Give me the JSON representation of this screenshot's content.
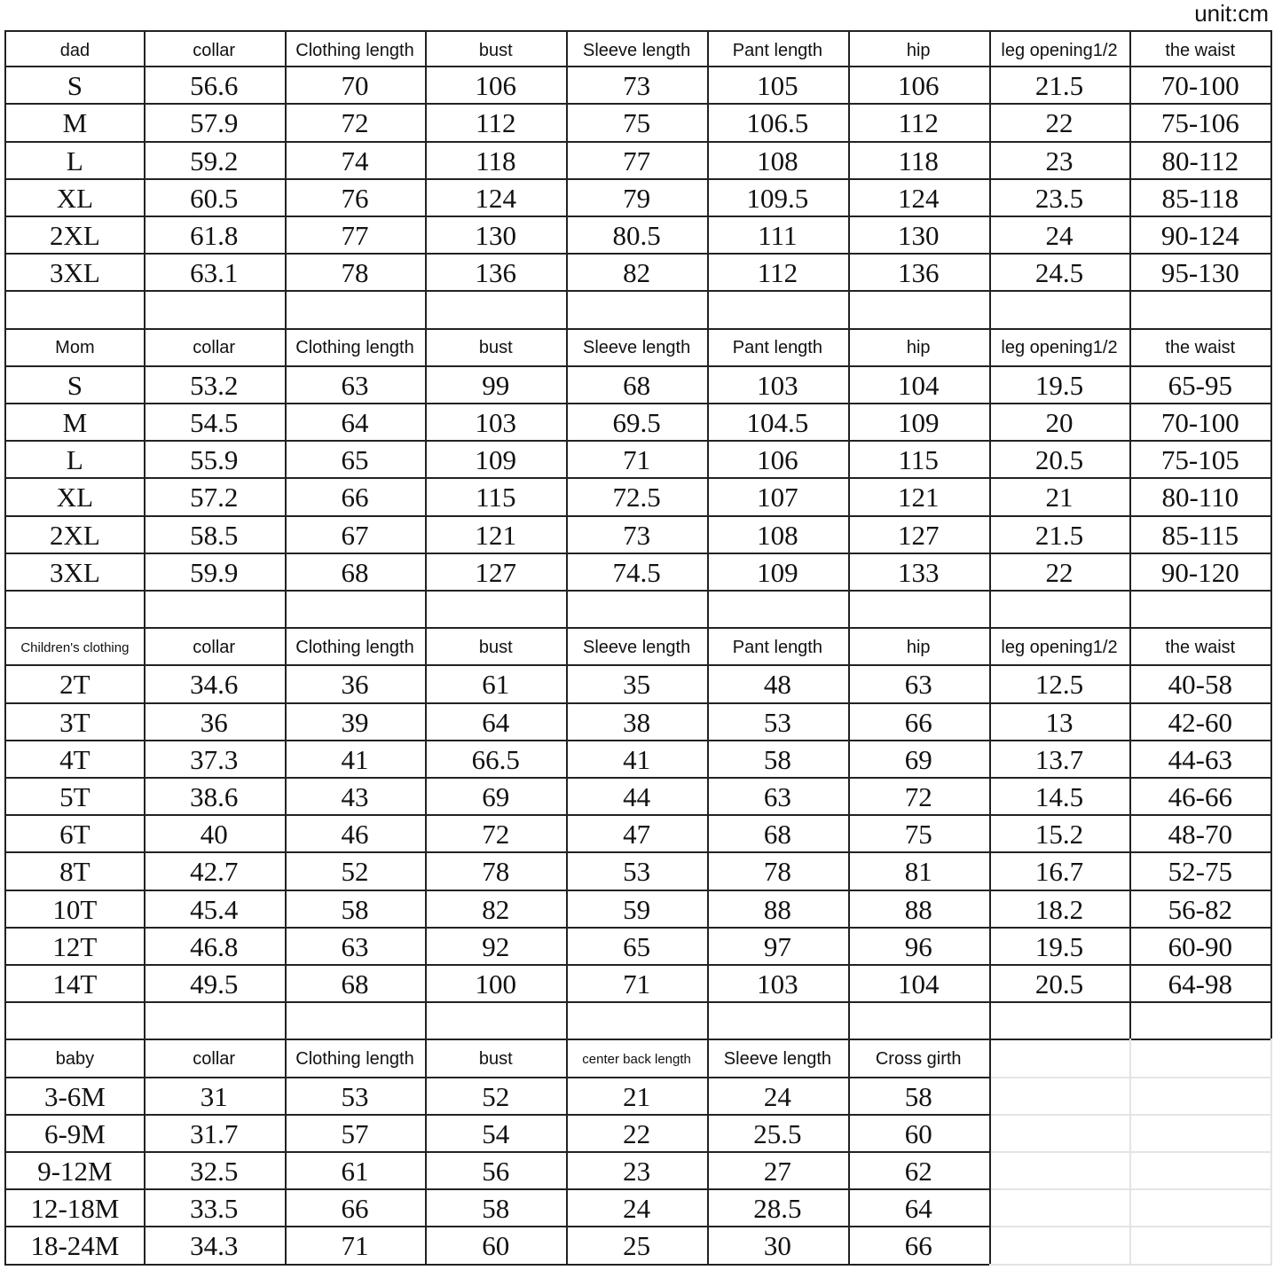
{
  "unit": "unit:cm",
  "sections": [
    {
      "headers": [
        "dad",
        "collar",
        "Clothing length",
        "bust",
        "Sleeve length",
        "Pant length",
        "hip",
        "leg opening1/2",
        "the waist"
      ],
      "rows": [
        [
          "S",
          "56.6",
          "70",
          "106",
          "73",
          "105",
          "106",
          "21.5",
          "70-100"
        ],
        [
          "M",
          "57.9",
          "72",
          "112",
          "75",
          "106.5",
          "112",
          "22",
          "75-106"
        ],
        [
          "L",
          "59.2",
          "74",
          "118",
          "77",
          "108",
          "118",
          "23",
          "80-112"
        ],
        [
          "XL",
          "60.5",
          "76",
          "124",
          "79",
          "109.5",
          "124",
          "23.5",
          "85-118"
        ],
        [
          "2XL",
          "61.8",
          "77",
          "130",
          "80.5",
          "111",
          "130",
          "24",
          "90-124"
        ],
        [
          "3XL",
          "63.1",
          "78",
          "136",
          "82",
          "112",
          "136",
          "24.5",
          "95-130"
        ]
      ]
    },
    {
      "headers": [
        "Mom",
        "collar",
        "Clothing length",
        "bust",
        "Sleeve length",
        "Pant length",
        "hip",
        "leg opening1/2",
        "the waist"
      ],
      "rows": [
        [
          "S",
          "53.2",
          "63",
          "99",
          "68",
          "103",
          "104",
          "19.5",
          "65-95"
        ],
        [
          "M",
          "54.5",
          "64",
          "103",
          "69.5",
          "104.5",
          "109",
          "20",
          "70-100"
        ],
        [
          "L",
          "55.9",
          "65",
          "109",
          "71",
          "106",
          "115",
          "20.5",
          "75-105"
        ],
        [
          "XL",
          "57.2",
          "66",
          "115",
          "72.5",
          "107",
          "121",
          "21",
          "80-110"
        ],
        [
          "2XL",
          "58.5",
          "67",
          "121",
          "73",
          "108",
          "127",
          "21.5",
          "85-115"
        ],
        [
          "3XL",
          "59.9",
          "68",
          "127",
          "74.5",
          "109",
          "133",
          "22",
          "90-120"
        ]
      ]
    },
    {
      "headers": [
        "Children's clothing",
        "collar",
        "Clothing length",
        "bust",
        "Sleeve length",
        "Pant length",
        "hip",
        "leg opening1/2",
        "the waist"
      ],
      "rows": [
        [
          "2T",
          "34.6",
          "36",
          "61",
          "35",
          "48",
          "63",
          "12.5",
          "40-58"
        ],
        [
          "3T",
          "36",
          "39",
          "64",
          "38",
          "53",
          "66",
          "13",
          "42-60"
        ],
        [
          "4T",
          "37.3",
          "41",
          "66.5",
          "41",
          "58",
          "69",
          "13.7",
          "44-63"
        ],
        [
          "5T",
          "38.6",
          "43",
          "69",
          "44",
          "63",
          "72",
          "14.5",
          "46-66"
        ],
        [
          "6T",
          "40",
          "46",
          "72",
          "47",
          "68",
          "75",
          "15.2",
          "48-70"
        ],
        [
          "8T",
          "42.7",
          "52",
          "78",
          "53",
          "78",
          "81",
          "16.7",
          "52-75"
        ],
        [
          "10T",
          "45.4",
          "58",
          "82",
          "59",
          "88",
          "88",
          "18.2",
          "56-82"
        ],
        [
          "12T",
          "46.8",
          "63",
          "92",
          "65",
          "97",
          "96",
          "19.5",
          "60-90"
        ],
        [
          "14T",
          "49.5",
          "68",
          "100",
          "71",
          "103",
          "104",
          "20.5",
          "64-98"
        ]
      ]
    },
    {
      "headers": [
        "baby",
        "collar",
        "Clothing length",
        "bust",
        "center back length",
        "Sleeve length",
        "Cross girth"
      ],
      "rows": [
        [
          "3-6M",
          "31",
          "53",
          "52",
          "21",
          "24",
          "58"
        ],
        [
          "6-9M",
          "31.7",
          "57",
          "54",
          "22",
          "25.5",
          "60"
        ],
        [
          "9-12M",
          "32.5",
          "61",
          "56",
          "23",
          "27",
          "62"
        ],
        [
          "12-18M",
          "33.5",
          "66",
          "58",
          "24",
          "28.5",
          "64"
        ],
        [
          "18-24M",
          "34.3",
          "71",
          "60",
          "25",
          "30",
          "66"
        ]
      ]
    }
  ]
}
